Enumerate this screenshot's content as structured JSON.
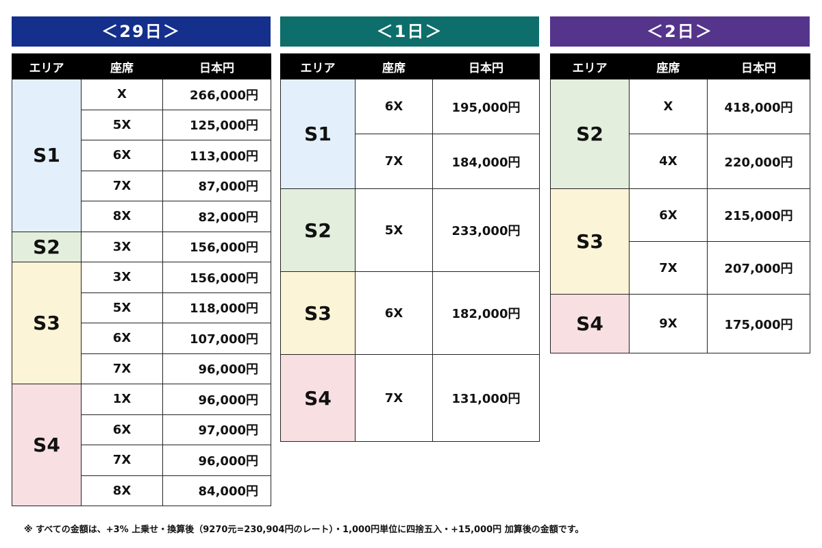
{
  "colors": {
    "title_29": "#142f8c",
    "title_1": "#0e6e6b",
    "title_2": "#55348c",
    "area_S1": "#e3f0fb",
    "area_S2": "#e3eedd",
    "area_S3": "#fcf4d6",
    "area_S4": "#f8dfe2"
  },
  "headers": [
    "エリア",
    "座席",
    "日本円"
  ],
  "panels": [
    {
      "title": "＜29日＞",
      "color_key": "title_29",
      "areas": [
        {
          "name": "S1",
          "color_key": "area_S1",
          "rows": [
            {
              "seat": "X",
              "price": "266,000円"
            },
            {
              "seat": "5X",
              "price": "125,000円"
            },
            {
              "seat": "6X",
              "price": "113,000円"
            },
            {
              "seat": "7X",
              "price": "87,000円"
            },
            {
              "seat": "8X",
              "price": "82,000円"
            }
          ]
        },
        {
          "name": "S2",
          "color_key": "area_S2",
          "rows": [
            {
              "seat": "3X",
              "price": "156,000円"
            }
          ]
        },
        {
          "name": "S3",
          "color_key": "area_S3",
          "rows": [
            {
              "seat": "3X",
              "price": "156,000円"
            },
            {
              "seat": "5X",
              "price": "118,000円"
            },
            {
              "seat": "6X",
              "price": "107,000円"
            },
            {
              "seat": "7X",
              "price": "96,000円"
            }
          ]
        },
        {
          "name": "S4",
          "color_key": "area_S4",
          "rows": [
            {
              "seat": "1X",
              "price": "96,000円"
            },
            {
              "seat": "6X",
              "price": "97,000円"
            },
            {
              "seat": "7X",
              "price": "96,000円"
            },
            {
              "seat": "8X",
              "price": "84,000円"
            }
          ]
        }
      ]
    },
    {
      "title": "＜1日＞",
      "color_key": "title_1",
      "areas": [
        {
          "name": "S1",
          "color_key": "area_S1",
          "rows": [
            {
              "seat": "6X",
              "price": "195,000円"
            },
            {
              "seat": "7X",
              "price": "184,000円"
            }
          ]
        },
        {
          "name": "S2",
          "color_key": "area_S2",
          "rows": [
            {
              "seat": "5X",
              "price": "233,000円"
            }
          ]
        },
        {
          "name": "S3",
          "color_key": "area_S3",
          "rows": [
            {
              "seat": "6X",
              "price": "182,000円"
            }
          ]
        },
        {
          "name": "S4",
          "color_key": "area_S4",
          "rows": [
            {
              "seat": "7X",
              "price": "131,000円"
            }
          ]
        }
      ]
    },
    {
      "title": "＜2日＞",
      "color_key": "title_2",
      "areas": [
        {
          "name": "S2",
          "color_key": "area_S2",
          "rows": [
            {
              "seat": "X",
              "price": "418,000円"
            },
            {
              "seat": "4X",
              "price": "220,000円"
            }
          ]
        },
        {
          "name": "S3",
          "color_key": "area_S3",
          "rows": [
            {
              "seat": "6X",
              "price": "215,000円"
            },
            {
              "seat": "7X",
              "price": "207,000円"
            }
          ]
        },
        {
          "name": "S4",
          "color_key": "area_S4",
          "rows": [
            {
              "seat": "9X",
              "price": "175,000円"
            }
          ]
        }
      ]
    }
  ],
  "footnote": "※ すべての金額は、+3% 上乗せ・換算後（9270元=230,904円のレート）・1,000円単位に四捨五入・+15,000円 加算後の金額です。"
}
